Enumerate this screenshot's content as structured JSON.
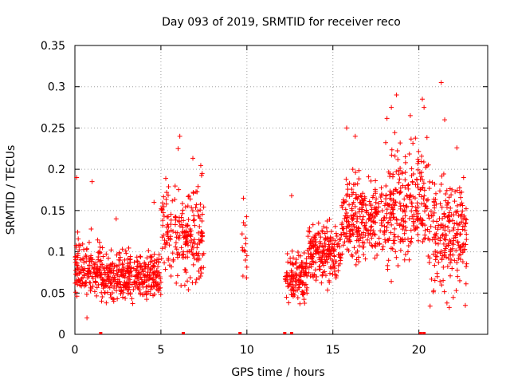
{
  "chart_data": {
    "type": "scatter",
    "title": "Day 093 of 2019, SRMTID for receiver reco",
    "xlabel": "GPS time / hours",
    "ylabel": "SRMTID / TECUs",
    "xlim": [
      0,
      24
    ],
    "ylim": [
      0,
      0.35
    ],
    "xticks": [
      0,
      5,
      10,
      15,
      20
    ],
    "xtick_labels": [
      "0",
      "5",
      "10",
      "15",
      "20"
    ],
    "yticks": [
      0,
      0.05,
      0.1,
      0.15,
      0.2,
      0.25,
      0.3,
      0.35
    ],
    "ytick_labels": [
      "0",
      "0.05",
      "0.1",
      "0.15",
      "0.2",
      "0.25",
      "0.3",
      "0.35"
    ],
    "grid": true,
    "marker": "+",
    "marker_color": "#ff0000",
    "point_segments": [
      {
        "t_start": 0.0,
        "t_end": 1.5,
        "mean": 0.08,
        "spread": 0.025,
        "count": 150
      },
      {
        "t_start": 1.5,
        "t_end": 5.0,
        "mean": 0.07,
        "spread": 0.02,
        "count": 350
      },
      {
        "t_start": 5.0,
        "t_end": 6.5,
        "mean": 0.12,
        "spread": 0.04,
        "count": 120
      },
      {
        "t_start": 6.5,
        "t_end": 7.5,
        "mean": 0.12,
        "spread": 0.045,
        "count": 100
      },
      {
        "t_start": 9.7,
        "t_end": 10.0,
        "mean": 0.1,
        "spread": 0.035,
        "count": 15
      },
      {
        "t_start": 12.2,
        "t_end": 13.5,
        "mean": 0.07,
        "spread": 0.02,
        "count": 130
      },
      {
        "t_start": 13.5,
        "t_end": 15.5,
        "mean": 0.1,
        "spread": 0.025,
        "count": 200
      },
      {
        "t_start": 15.5,
        "t_end": 18.0,
        "mean": 0.14,
        "spread": 0.035,
        "count": 250
      },
      {
        "t_start": 18.0,
        "t_end": 20.5,
        "mean": 0.16,
        "spread": 0.05,
        "count": 250
      },
      {
        "t_start": 20.5,
        "t_end": 22.8,
        "mean": 0.12,
        "spread": 0.05,
        "count": 230
      }
    ],
    "peak_points": [
      {
        "x": 6.1,
        "y": 0.24
      },
      {
        "x": 6.0,
        "y": 0.225
      },
      {
        "x": 7.4,
        "y": 0.195
      },
      {
        "x": 9.8,
        "y": 0.165
      },
      {
        "x": 12.6,
        "y": 0.168
      },
      {
        "x": 15.8,
        "y": 0.25
      },
      {
        "x": 16.3,
        "y": 0.24
      },
      {
        "x": 18.7,
        "y": 0.29
      },
      {
        "x": 18.4,
        "y": 0.275
      },
      {
        "x": 19.5,
        "y": 0.265
      },
      {
        "x": 20.2,
        "y": 0.285
      },
      {
        "x": 20.3,
        "y": 0.275
      },
      {
        "x": 21.3,
        "y": 0.305
      },
      {
        "x": 21.5,
        "y": 0.26
      },
      {
        "x": 0.1,
        "y": 0.19
      },
      {
        "x": 1.0,
        "y": 0.185
      },
      {
        "x": 2.4,
        "y": 0.14
      },
      {
        "x": 4.6,
        "y": 0.16
      },
      {
        "x": 22.6,
        "y": 0.19
      },
      {
        "x": 22.7,
        "y": 0.035
      },
      {
        "x": 0.7,
        "y": 0.02
      }
    ],
    "zero_points": [
      1.5,
      6.3,
      9.6,
      12.2,
      12.6,
      20.1,
      20.3
    ]
  }
}
